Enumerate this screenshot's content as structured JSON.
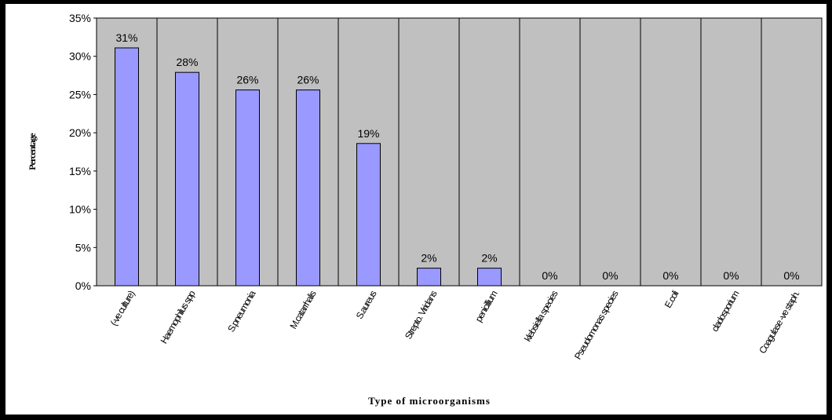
{
  "colors": {
    "plot_background": "#c0c0c0",
    "bar_fill": "#9999ff",
    "bar_stroke": "#000000",
    "gridline": "#000000"
  },
  "chart_data": {
    "type": "bar",
    "title": "",
    "xlabel": "Type of microorganisms",
    "ylabel": "Percentage",
    "ylim": [
      0,
      35
    ],
    "y_ticks": [
      "0%",
      "5%",
      "10%",
      "15%",
      "20%",
      "25%",
      "30%",
      "35%"
    ],
    "grid": "vertical category separators",
    "legend": "none",
    "categories": [
      "(-ve culture)",
      "Haemophilus spp",
      "S.pneumonia",
      "M.catarrhalis",
      "S.aureus",
      "Strepto. Viridans",
      "penicillium",
      "klebsiella species",
      "Pseudomonas species",
      "E.coli",
      "cladosporium",
      "Coagulase -ve staph."
    ],
    "values": [
      31.1,
      27.9,
      25.6,
      25.6,
      18.6,
      2.3,
      2.3,
      0,
      0,
      0,
      0,
      0
    ],
    "data_labels": [
      "31%",
      "28%",
      "26%",
      "26%",
      "19%",
      "2%",
      "2%",
      "0%",
      "0%",
      "0%",
      "0%",
      "0%"
    ]
  }
}
